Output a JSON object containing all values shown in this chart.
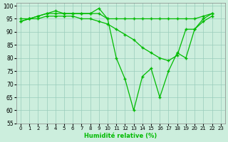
{
  "series1": [
    95,
    95,
    96,
    97,
    97,
    97,
    97,
    97,
    97,
    97,
    95,
    95,
    95,
    95,
    95,
    95,
    95,
    95,
    95,
    95,
    95,
    96,
    97
  ],
  "series2": [
    94,
    95,
    96,
    97,
    98,
    97,
    97,
    97,
    97,
    99,
    95,
    80,
    72,
    60,
    73,
    76,
    65,
    75,
    82,
    80,
    91,
    95,
    97
  ],
  "series3": [
    94,
    95,
    95,
    96,
    96,
    96,
    96,
    95,
    95,
    94,
    93,
    91,
    89,
    87,
    84,
    82,
    80,
    79,
    81,
    91,
    91,
    94,
    96
  ],
  "xlabel": "Humidité relative (%)",
  "ylim": [
    55,
    101
  ],
  "xlim": [
    -0.5,
    23.5
  ],
  "yticks": [
    55,
    60,
    65,
    70,
    75,
    80,
    85,
    90,
    95,
    100
  ],
  "xticks": [
    0,
    1,
    2,
    3,
    4,
    5,
    6,
    7,
    8,
    9,
    10,
    11,
    12,
    13,
    14,
    15,
    16,
    17,
    18,
    19,
    20,
    21,
    22,
    23
  ],
  "xticklabels": [
    "0",
    "1",
    "2",
    "3",
    "4",
    "5",
    "6",
    "7",
    "8",
    "9",
    "10",
    "11",
    "12",
    "13",
    "14",
    "15",
    "16",
    "17",
    "18",
    "19",
    "20",
    "21",
    "22",
    "23"
  ],
  "line_color": "#00bb00",
  "bg_color": "#cceedd",
  "plot_bg": "#cceedd",
  "grid_color": "#99ccbb",
  "marker": "+"
}
